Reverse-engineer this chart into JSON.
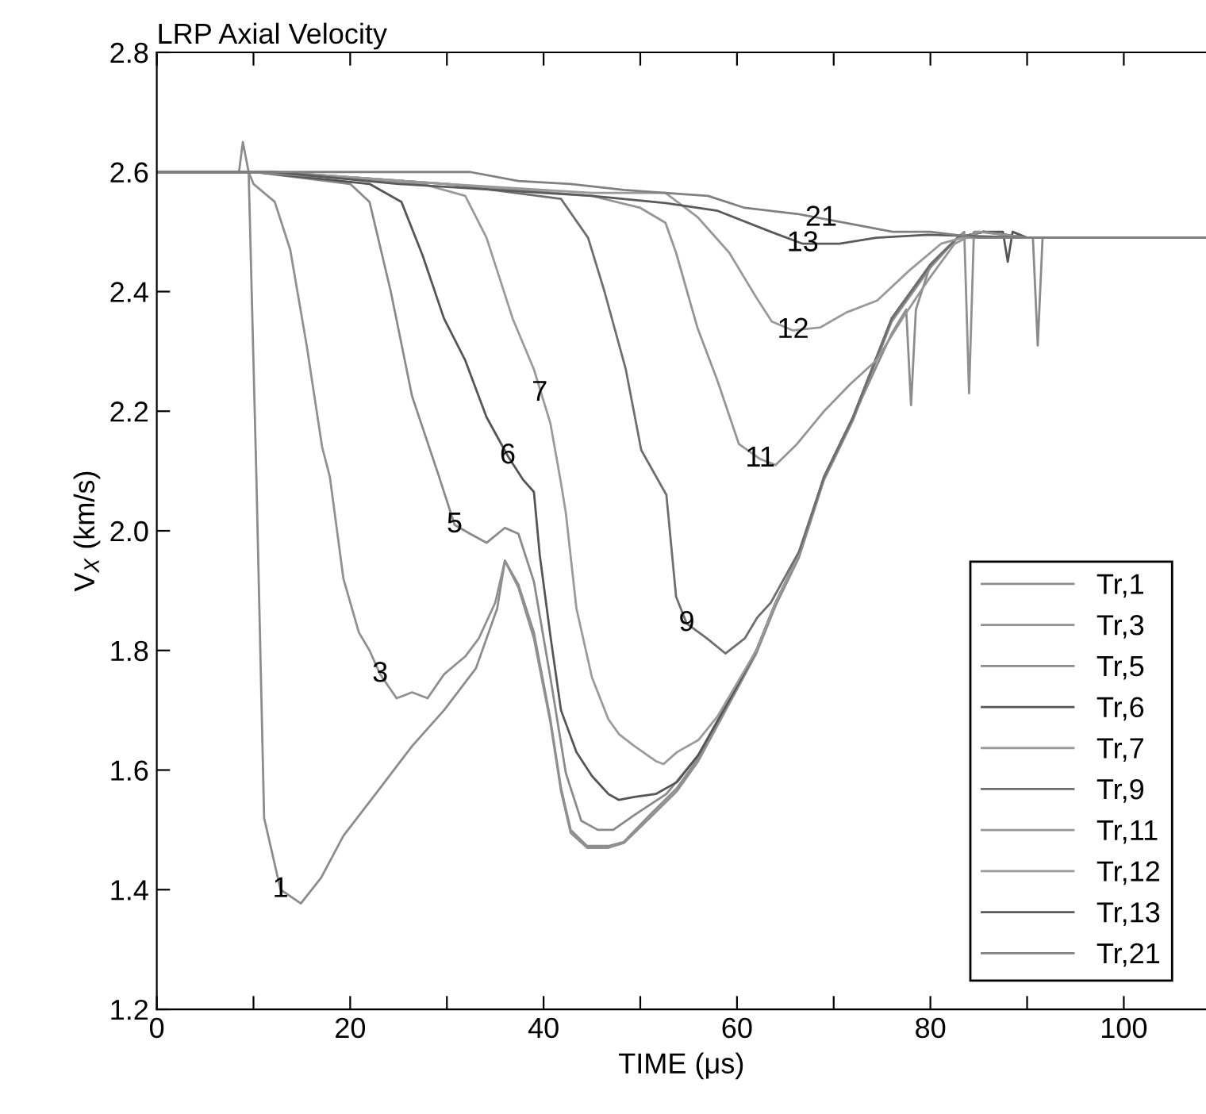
{
  "chart_data": {
    "type": "line",
    "title": "LRP Axial Velocity",
    "xlabel": "TIME (μs)",
    "ylabel": "V$_{X}$ (km/s)",
    "xlim": [
      0,
      108.5
    ],
    "ylim": [
      1.2,
      2.8
    ],
    "xticks": [
      0,
      {
        "value": 10,
        "label": null
      },
      20,
      {
        "value": 30,
        "label": null
      },
      40,
      {
        "value": 50,
        "label": null
      },
      60,
      {
        "value": 70,
        "label": null
      },
      80,
      {
        "value": 90,
        "label": null
      },
      100
    ],
    "yticks": [
      1.2,
      1.4,
      1.6,
      1.8,
      {
        "value": 2.0,
        "label": "2.0"
      },
      2.2,
      2.4,
      2.6,
      2.8
    ],
    "grid": false,
    "legend": "bottom right",
    "series": [
      {
        "name": "Tr,1",
        "color": "#8c8c8c",
        "x": [
          0,
          8.5,
          8.9,
          9.5,
          10.3,
          11.1,
          12.8,
          14.9,
          17,
          19.3,
          23.1,
          26.4,
          29.7,
          33,
          35.2,
          36,
          37.4,
          39,
          40.7,
          41.8,
          42.8,
          44.5,
          46.7,
          48.3,
          51,
          53.8,
          56,
          60,
          62,
          64,
          66.4,
          69,
          72,
          76,
          77.5,
          78,
          78.5,
          80,
          82.8,
          85.5,
          90,
          108.5
        ],
        "values": [
          2.6,
          2.6,
          2.65,
          2.6,
          2.09,
          1.52,
          1.4,
          1.377,
          1.42,
          1.49,
          1.57,
          1.64,
          1.7,
          1.77,
          1.87,
          1.95,
          1.91,
          1.83,
          1.685,
          1.57,
          1.5,
          1.473,
          1.473,
          1.48,
          1.525,
          1.57,
          1.62,
          1.74,
          1.8,
          1.88,
          1.96,
          2.09,
          2.19,
          2.33,
          2.37,
          2.21,
          2.37,
          2.445,
          2.49,
          2.5,
          2.49,
          2.49
        ]
      },
      {
        "name": "Tr,3",
        "color": "#909090",
        "x": [
          0,
          9.5,
          10,
          12.2,
          13.8,
          15.5,
          17.1,
          17.9,
          19.3,
          20.9,
          22,
          23.1,
          24.8,
          26.4,
          28,
          29.7,
          31.9,
          33.3,
          35,
          36,
          37.4,
          39,
          40.7,
          41.8,
          42.8,
          44.5,
          46.7,
          48.3,
          51,
          53.8,
          56,
          60,
          62,
          64,
          66.4,
          69,
          72,
          76,
          80,
          82.8,
          83.5,
          84,
          84.5,
          85.5,
          90,
          108.5
        ],
        "values": [
          2.6,
          2.6,
          2.58,
          2.55,
          2.47,
          2.31,
          2.14,
          2.09,
          1.92,
          1.83,
          1.8,
          1.76,
          1.72,
          1.73,
          1.72,
          1.76,
          1.79,
          1.82,
          1.88,
          1.95,
          1.905,
          1.82,
          1.68,
          1.565,
          1.495,
          1.47,
          1.47,
          1.478,
          1.52,
          1.565,
          1.615,
          1.735,
          1.795,
          1.875,
          1.955,
          2.085,
          2.185,
          2.35,
          2.44,
          2.49,
          2.5,
          2.23,
          2.5,
          2.5,
          2.49,
          2.49
        ]
      },
      {
        "name": "Tr,5",
        "color": "#8a8a8a",
        "x": [
          0,
          10,
          20,
          22,
          24.2,
          26.4,
          29.2,
          30.8,
          32.4,
          34.1,
          36,
          37.4,
          39,
          40.7,
          42.3,
          43.9,
          45.6,
          47.2,
          49.4,
          52.7,
          56,
          60,
          62,
          64,
          66.4,
          69,
          72,
          76,
          80,
          82.8,
          85.5,
          90,
          90.6,
          91.1,
          91.6,
          95,
          108.5
        ],
        "values": [
          2.6,
          2.6,
          2.58,
          2.55,
          2.4,
          2.225,
          2.09,
          2.01,
          1.995,
          1.98,
          2.005,
          1.995,
          1.915,
          1.755,
          1.595,
          1.515,
          1.5,
          1.5,
          1.525,
          1.56,
          1.625,
          1.74,
          1.8,
          1.88,
          1.96,
          2.09,
          2.19,
          2.355,
          2.445,
          2.49,
          2.5,
          2.49,
          2.49,
          2.31,
          2.49,
          2.49,
          2.49
        ]
      },
      {
        "name": "Tr,6",
        "color": "#555555",
        "x": [
          0,
          10,
          22,
          25.3,
          27.5,
          29.7,
          31.9,
          34.1,
          36.3,
          37.9,
          39,
          39.6,
          40.7,
          41.8,
          43.4,
          45,
          46.7,
          47.8,
          49.4,
          51.6,
          53.8,
          56,
          60,
          62,
          64,
          66.4,
          69,
          72,
          76,
          80,
          82.8,
          85.5,
          87.5,
          88,
          88.5,
          90,
          108.5
        ],
        "values": [
          2.6,
          2.6,
          2.58,
          2.55,
          2.46,
          2.355,
          2.285,
          2.19,
          2.125,
          2.085,
          2.065,
          1.96,
          1.825,
          1.7,
          1.63,
          1.59,
          1.56,
          1.55,
          1.555,
          1.56,
          1.58,
          1.625,
          1.74,
          1.8,
          1.88,
          1.96,
          2.09,
          2.19,
          2.355,
          2.445,
          2.49,
          2.5,
          2.5,
          2.45,
          2.5,
          2.49,
          2.49
        ]
      },
      {
        "name": "Tr,7",
        "color": "#9a9a9a",
        "x": [
          0,
          10,
          27.5,
          31.9,
          34.1,
          36.8,
          39,
          40.7,
          41.8,
          42.3,
          43.4,
          45,
          46.7,
          47.8,
          49.4,
          51.6,
          52.4,
          53.8,
          56,
          58,
          60,
          62,
          64,
          66.4,
          69,
          72,
          76,
          80,
          82.8,
          85.5,
          90,
          108.5
        ],
        "values": [
          2.6,
          2.6,
          2.58,
          2.56,
          2.49,
          2.355,
          2.27,
          2.18,
          2.08,
          2.03,
          1.87,
          1.755,
          1.685,
          1.66,
          1.64,
          1.615,
          1.61,
          1.63,
          1.65,
          1.69,
          1.745,
          1.8,
          1.88,
          1.96,
          2.09,
          2.19,
          2.355,
          2.445,
          2.49,
          2.5,
          2.49,
          2.49
        ]
      },
      {
        "name": "Tr,9",
        "color": "#6e6e6e",
        "x": [
          0,
          12,
          30,
          41.8,
          44.6,
          46.3,
          48.5,
          50.1,
          52.7,
          53.7,
          54.8,
          56.9,
          58.8,
          60.8,
          62.1,
          63.5,
          66.4,
          69,
          72,
          76,
          80,
          82.8,
          85.5,
          90,
          108.5
        ],
        "values": [
          2.6,
          2.6,
          2.58,
          2.555,
          2.49,
          2.4,
          2.27,
          2.135,
          2.06,
          1.89,
          1.845,
          1.82,
          1.795,
          1.82,
          1.855,
          1.88,
          1.965,
          2.09,
          2.19,
          2.355,
          2.445,
          2.49,
          2.5,
          2.49,
          2.49
        ]
      },
      {
        "name": "Tr,11",
        "color": "#959595",
        "x": [
          0,
          12,
          30,
          45,
          50,
          52.6,
          53.7,
          55.9,
          58,
          60.2,
          62.4,
          64,
          66.2,
          69,
          71.7,
          74.4,
          77.1,
          79.8,
          82.5,
          85,
          90,
          108.5
        ],
        "values": [
          2.6,
          2.6,
          2.58,
          2.56,
          2.54,
          2.515,
          2.465,
          2.34,
          2.25,
          2.145,
          2.12,
          2.11,
          2.145,
          2.2,
          2.245,
          2.285,
          2.355,
          2.42,
          2.48,
          2.5,
          2.49,
          2.49
        ]
      },
      {
        "name": "Tr,12",
        "color": "#999999",
        "x": [
          0,
          12,
          30,
          45,
          52.6,
          55.9,
          59.2,
          62,
          63.6,
          65.8,
          68.6,
          71.3,
          74.5,
          77.8,
          81.1,
          83.3,
          90,
          108.5
        ],
        "values": [
          2.6,
          2.6,
          2.58,
          2.565,
          2.565,
          2.525,
          2.465,
          2.39,
          2.35,
          2.335,
          2.34,
          2.365,
          2.385,
          2.435,
          2.48,
          2.49,
          2.49,
          2.49
        ]
      },
      {
        "name": "Tr,13",
        "color": "#5a5a5a",
        "x": [
          0,
          12,
          25,
          45,
          52.6,
          58,
          63.5,
          66.8,
          70.6,
          74.4,
          79.8,
          90,
          108.5
        ],
        "values": [
          2.6,
          2.6,
          2.58,
          2.56,
          2.548,
          2.535,
          2.5,
          2.48,
          2.48,
          2.49,
          2.495,
          2.49,
          2.49
        ]
      },
      {
        "name": "Tr,21",
        "color": "#808080",
        "x": [
          0,
          32.4,
          37.4,
          42.8,
          48.3,
          52.6,
          57,
          60.8,
          66.2,
          71.2,
          76.1,
          80,
          85,
          108.5
        ],
        "values": [
          2.6,
          2.6,
          2.585,
          2.58,
          2.57,
          2.565,
          2.56,
          2.54,
          2.53,
          2.515,
          2.5,
          2.5,
          2.49,
          2.49
        ]
      }
    ],
    "annotations": [
      {
        "text": "1",
        "x": 12.8,
        "y": 1.4
      },
      {
        "text": "3",
        "x": 23.1,
        "y": 1.76
      },
      {
        "text": "5",
        "x": 30.8,
        "y": 2.01
      },
      {
        "text": "6",
        "x": 36.3,
        "y": 2.125
      },
      {
        "text": "7",
        "x": 39.6,
        "y": 2.23
      },
      {
        "text": "9",
        "x": 54.8,
        "y": 1.845
      },
      {
        "text": "11",
        "x": 62.4,
        "y": 2.12
      },
      {
        "text": "12",
        "x": 65.8,
        "y": 2.335
      },
      {
        "text": "13",
        "x": 66.8,
        "y": 2.48
      },
      {
        "text": "21",
        "x": 68.7,
        "y": 2.5225
      }
    ]
  }
}
